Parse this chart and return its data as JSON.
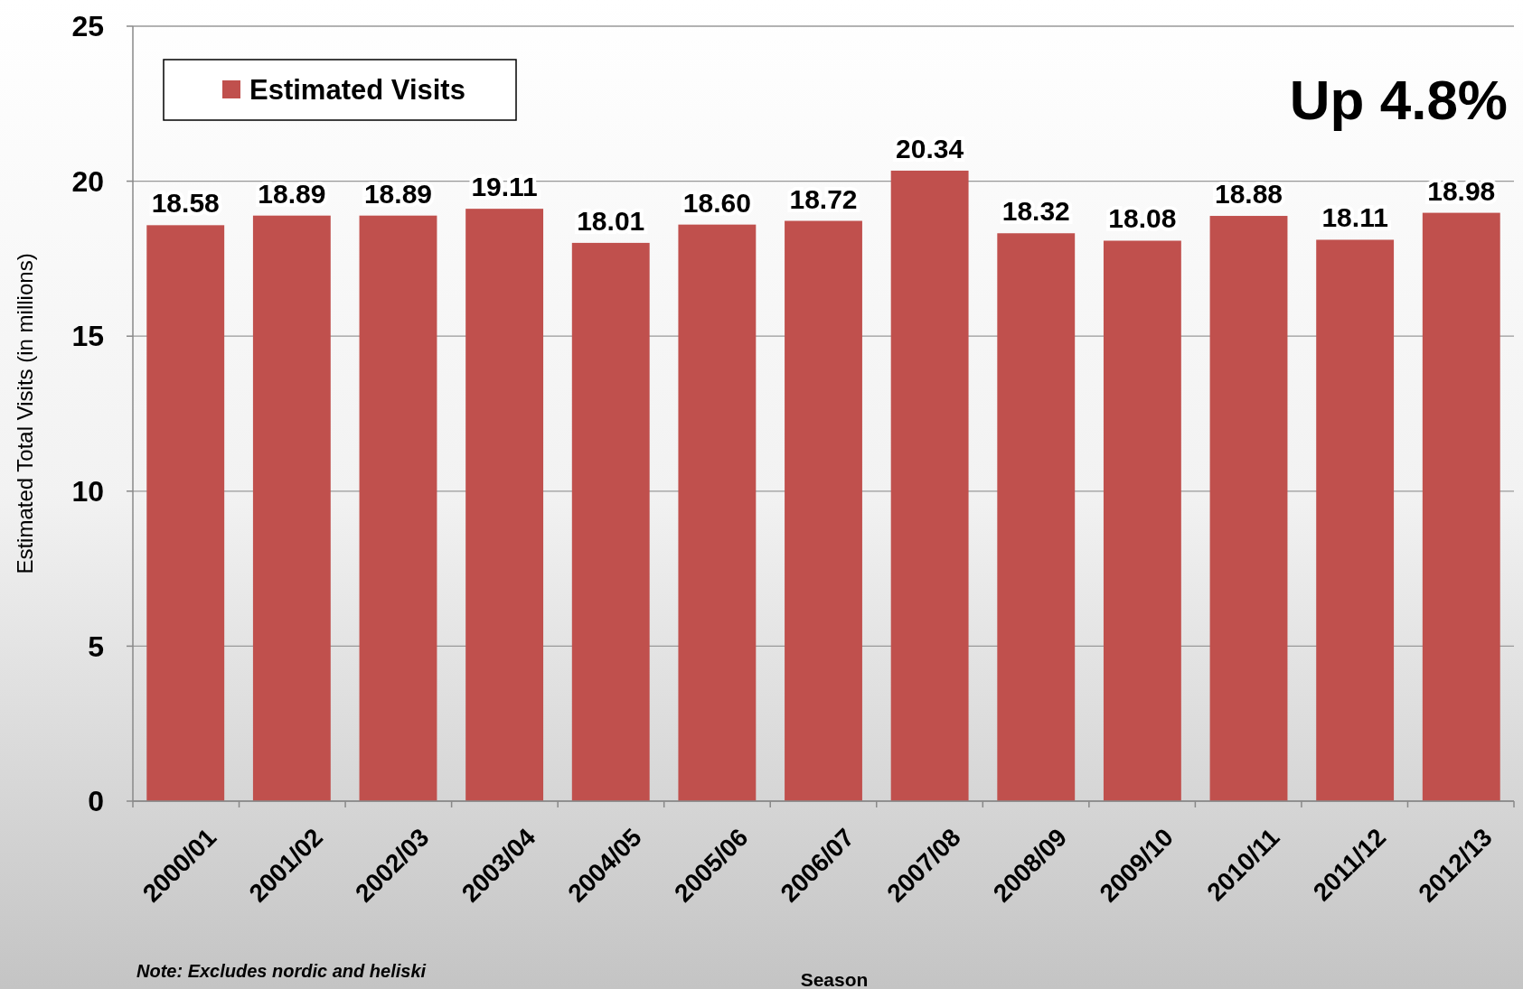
{
  "chart_data": {
    "type": "bar",
    "ylabel": "Estimated Total Visits (in millions)",
    "xlabel": "Season",
    "categories": [
      "2000/01",
      "2001/02",
      "2002/03",
      "2003/04",
      "2004/05",
      "2005/06",
      "2006/07",
      "2007/08",
      "2008/09",
      "2009/10",
      "2010/11",
      "2011/12",
      "2012/13"
    ],
    "series": [
      {
        "name": "Estimated Visits",
        "color": "#c0504d",
        "values": [
          18.58,
          18.89,
          18.89,
          19.11,
          18.01,
          18.6,
          18.72,
          20.34,
          18.32,
          18.08,
          18.88,
          18.11,
          18.98
        ]
      }
    ],
    "value_labels": [
      "18.58",
      "18.89",
      "18.89",
      "19.11",
      "18.01",
      "18.60",
      "18.72",
      "20.34",
      "18.32",
      "18.08",
      "18.88",
      "18.11",
      "18.98"
    ],
    "ylim": [
      0,
      25
    ],
    "yticks": [
      0,
      5,
      10,
      15,
      20,
      25
    ],
    "grid": "y",
    "legend": "top left",
    "annotations": [
      "Up 4.8%",
      "Note:  Excludes nordic and heliski"
    ]
  }
}
